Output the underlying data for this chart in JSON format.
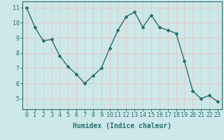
{
  "x": [
    0,
    1,
    2,
    3,
    4,
    5,
    6,
    7,
    8,
    9,
    10,
    11,
    12,
    13,
    14,
    15,
    16,
    17,
    18,
    19,
    20,
    21,
    22,
    23
  ],
  "y": [
    11.0,
    9.7,
    8.8,
    8.9,
    7.8,
    7.1,
    6.6,
    6.0,
    6.5,
    7.0,
    8.3,
    9.5,
    10.4,
    10.7,
    9.7,
    10.5,
    9.7,
    9.5,
    9.3,
    7.5,
    5.5,
    5.0,
    5.2,
    4.8
  ],
  "line_color": "#2d6e6e",
  "marker": "D",
  "marker_size": 2.0,
  "bg_color": "#cce8e8",
  "grid_color": "#e8c8c8",
  "xlabel": "Humidex (Indice chaleur)",
  "xlim": [
    -0.5,
    23.5
  ],
  "ylim": [
    4.3,
    11.4
  ],
  "yticks": [
    5,
    6,
    7,
    8,
    9,
    10,
    11
  ],
  "xticks": [
    0,
    1,
    2,
    3,
    4,
    5,
    6,
    7,
    8,
    9,
    10,
    11,
    12,
    13,
    14,
    15,
    16,
    17,
    18,
    19,
    20,
    21,
    22,
    23
  ],
  "xtick_labels": [
    "0",
    "1",
    "2",
    "3",
    "4",
    "5",
    "6",
    "7",
    "8",
    "9",
    "10",
    "11",
    "12",
    "13",
    "14",
    "15",
    "16",
    "17",
    "18",
    "19",
    "20",
    "21",
    "22",
    "23"
  ],
  "tick_color": "#2d6e6e",
  "label_fontsize": 7,
  "tick_fontsize": 6,
  "linewidth": 1.0
}
